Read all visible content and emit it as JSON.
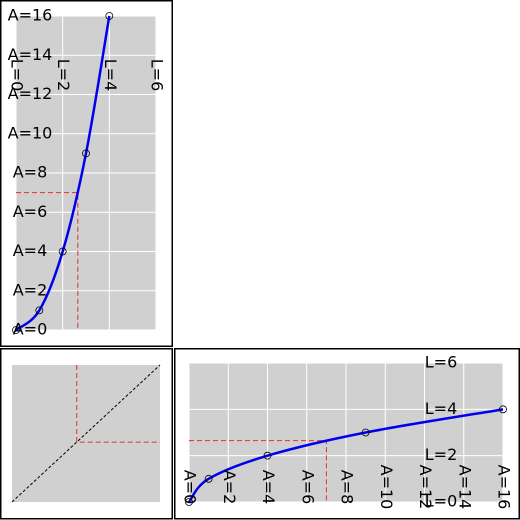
{
  "chart_data": [
    {
      "type": "line",
      "x": [
        0,
        1,
        2,
        3,
        4
      ],
      "series": [
        {
          "color": "#0000ee",
          "values": [
            0,
            1,
            4,
            9,
            16
          ]
        }
      ],
      "xlim": [
        0,
        6
      ],
      "ylim": [
        0,
        16
      ],
      "xticks": [
        {
          "value": 0,
          "label": "L=0"
        },
        {
          "value": 2,
          "label": "L=2"
        },
        {
          "value": 4,
          "label": "L=4"
        },
        {
          "value": 6,
          "label": "L=6"
        }
      ],
      "yticks": [
        {
          "value": 0,
          "label": "A=0"
        },
        {
          "value": 2,
          "label": "A=2"
        },
        {
          "value": 4,
          "label": "A=4"
        },
        {
          "value": 6,
          "label": "A=6"
        },
        {
          "value": 8,
          "label": "A=8"
        },
        {
          "value": 10,
          "label": "A=10"
        },
        {
          "value": 12,
          "label": "A=12"
        },
        {
          "value": 14,
          "label": "A=14"
        },
        {
          "value": 16,
          "label": "A=16"
        }
      ],
      "grid": true,
      "guide": {
        "x": 2.65,
        "y": 7,
        "color": "#e03030"
      }
    },
    {
      "type": "identity",
      "xlim": [
        0,
        16
      ],
      "ylim": [
        0,
        16
      ],
      "grid": true,
      "guide": {
        "x": 7,
        "y": 7,
        "color": "#e03030"
      }
    },
    {
      "type": "line",
      "x": [
        0,
        1,
        4,
        9,
        16
      ],
      "series": [
        {
          "color": "#0000ee",
          "values": [
            0,
            1,
            2,
            3,
            4
          ]
        }
      ],
      "xlim": [
        0,
        16
      ],
      "ylim": [
        0,
        6
      ],
      "xticks": [
        {
          "value": 0,
          "label": "A=0"
        },
        {
          "value": 2,
          "label": "A=2"
        },
        {
          "value": 4,
          "label": "A=4"
        },
        {
          "value": 6,
          "label": "A=6"
        },
        {
          "value": 8,
          "label": "A=8"
        },
        {
          "value": 10,
          "label": "A=10"
        },
        {
          "value": 12,
          "label": "A=12"
        },
        {
          "value": 14,
          "label": "A=14"
        },
        {
          "value": 16,
          "label": "A=16"
        }
      ],
      "yticks": [
        {
          "value": 0,
          "label": "L=0"
        },
        {
          "value": 2,
          "label": "L=2"
        },
        {
          "value": 4,
          "label": "L=4"
        },
        {
          "value": 6,
          "label": "L=6"
        }
      ],
      "grid": true,
      "guide": {
        "x": 7,
        "y": 2.65,
        "color": "#e03030"
      }
    }
  ]
}
